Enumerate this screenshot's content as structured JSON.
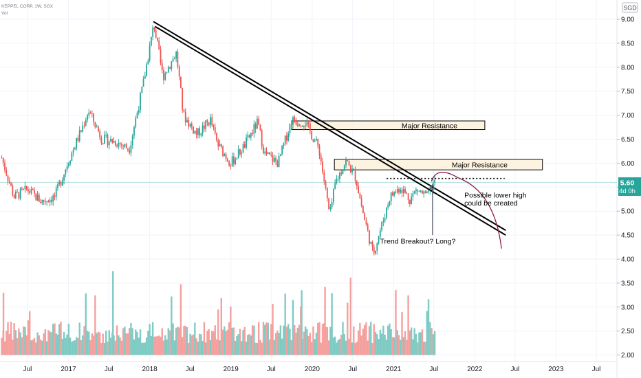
{
  "header": {
    "symbol_line": "KEPPEL CORP, 1W, SGX",
    "volume_label": "Vol"
  },
  "currency_badge": "SGD",
  "price_label": {
    "price": "5.60",
    "countdown": "4d 0h"
  },
  "colors": {
    "up": "#26a69a",
    "down": "#ef5350",
    "vol_up": "#7fcbc4",
    "vol_down": "#f4a09e",
    "trendline": "#000000",
    "resistance_fill": "#fdf1dc",
    "arc": "#8b1c4a",
    "price_line": "#b2dfdb",
    "price_badge": "#26a69a"
  },
  "annotations": {
    "resistance_upper": "Major Resistance",
    "resistance_lower": "Major Resistance",
    "lower_high_note_line1": "Possible lower high",
    "lower_high_note_line2": "could be created",
    "breakout_note": "Trend Breakout? Long?"
  },
  "chart_data": {
    "type": "candlestick",
    "symbol": "KEPPEL CORP",
    "interval": "1W",
    "exchange": "SGX",
    "currency": "SGD",
    "last_price": 5.6,
    "y_axis": {
      "ticks": [
        "9.00",
        "8.50",
        "8.00",
        "7.50",
        "7.00",
        "6.50",
        "6.00",
        "5.50",
        "5.00",
        "4.50",
        "4.00",
        "3.50",
        "3.00",
        "2.50",
        "2.00"
      ],
      "range": [
        1.95,
        9.2
      ]
    },
    "x_axis": {
      "ticks": [
        "Jul",
        "2017",
        "Jul",
        "2018",
        "Jul",
        "2019",
        "Jul",
        "2020",
        "Jul",
        "2021",
        "Jul",
        "2022",
        "Jul",
        "2023",
        "Jul"
      ],
      "tick_dates": [
        "2016-07",
        "2017-01",
        "2017-07",
        "2018-01",
        "2018-07",
        "2019-01",
        "2019-07",
        "2020-01",
        "2020-07",
        "2021-01",
        "2021-07",
        "2022-01",
        "2022-07",
        "2023-01",
        "2023-07"
      ]
    },
    "price_path": [
      [
        "2016-03-01",
        6.2
      ],
      [
        "2016-05-01",
        5.3
      ],
      [
        "2016-07-01",
        5.45
      ],
      [
        "2016-09-01",
        5.2
      ],
      [
        "2016-11-01",
        5.3
      ],
      [
        "2017-01-01",
        6.05
      ],
      [
        "2017-03-01",
        6.7
      ],
      [
        "2017-04-01",
        7.1
      ],
      [
        "2017-06-01",
        6.5
      ],
      [
        "2017-08-01",
        6.45
      ],
      [
        "2017-10-01",
        6.3
      ],
      [
        "2017-12-01",
        7.6
      ],
      [
        "2018-01-20",
        8.9
      ],
      [
        "2018-03-01",
        7.8
      ],
      [
        "2018-05-01",
        8.3
      ],
      [
        "2018-06-01",
        7.0
      ],
      [
        "2018-08-01",
        6.6
      ],
      [
        "2018-10-01",
        6.9
      ],
      [
        "2018-11-01",
        6.4
      ],
      [
        "2019-01-01",
        6.0
      ],
      [
        "2019-03-01",
        6.35
      ],
      [
        "2019-05-01",
        6.85
      ],
      [
        "2019-06-01",
        6.2
      ],
      [
        "2019-08-01",
        6.0
      ],
      [
        "2019-10-01",
        6.9
      ],
      [
        "2019-12-01",
        6.85
      ],
      [
        "2020-02-01",
        6.3
      ],
      [
        "2020-03-20",
        4.9
      ],
      [
        "2020-04-15",
        5.6
      ],
      [
        "2020-06-01",
        6.05
      ],
      [
        "2020-07-15",
        5.7
      ],
      [
        "2020-08-15",
        5.0
      ],
      [
        "2020-10-01",
        4.1
      ],
      [
        "2020-11-15",
        4.8
      ],
      [
        "2020-12-15",
        5.3
      ],
      [
        "2021-02-01",
        5.5
      ],
      [
        "2021-03-15",
        5.25
      ],
      [
        "2021-04-15",
        5.45
      ],
      [
        "2021-06-01",
        5.3
      ],
      [
        "2021-07-01",
        5.6
      ]
    ],
    "volume_range": [
      2.05,
      3.5
    ],
    "drawings": {
      "resistance_zones": [
        {
          "label": "Major Resistance",
          "from": "2019-10-01",
          "to": "2022-02-15",
          "low": 6.7,
          "high": 6.88
        },
        {
          "label": "Major Resistance",
          "from": "2020-04-10",
          "to": "2022-11-01",
          "low": 5.86,
          "high": 6.08
        }
      ],
      "trendlines": [
        {
          "from": [
            "2018-01-18",
            8.95
          ],
          "to": [
            "2022-05-20",
            4.6
          ]
        },
        {
          "from": [
            "2018-01-25",
            8.85
          ],
          "to": [
            "2022-05-20",
            4.5
          ]
        }
      ],
      "dotted_level": {
        "from": "2020-12-01",
        "to": "2022-05-15",
        "price": 5.68
      },
      "projection_arc": {
        "from": [
          "2021-06-20",
          5.62
        ],
        "peak": [
          "2021-09-15",
          5.7
        ],
        "to": [
          "2022-05-01",
          4.22
        ]
      },
      "breakout_arrow": {
        "from": [
          "2021-07-01",
          4.5
        ],
        "to": [
          "2021-07-01",
          5.55
        ]
      }
    }
  }
}
